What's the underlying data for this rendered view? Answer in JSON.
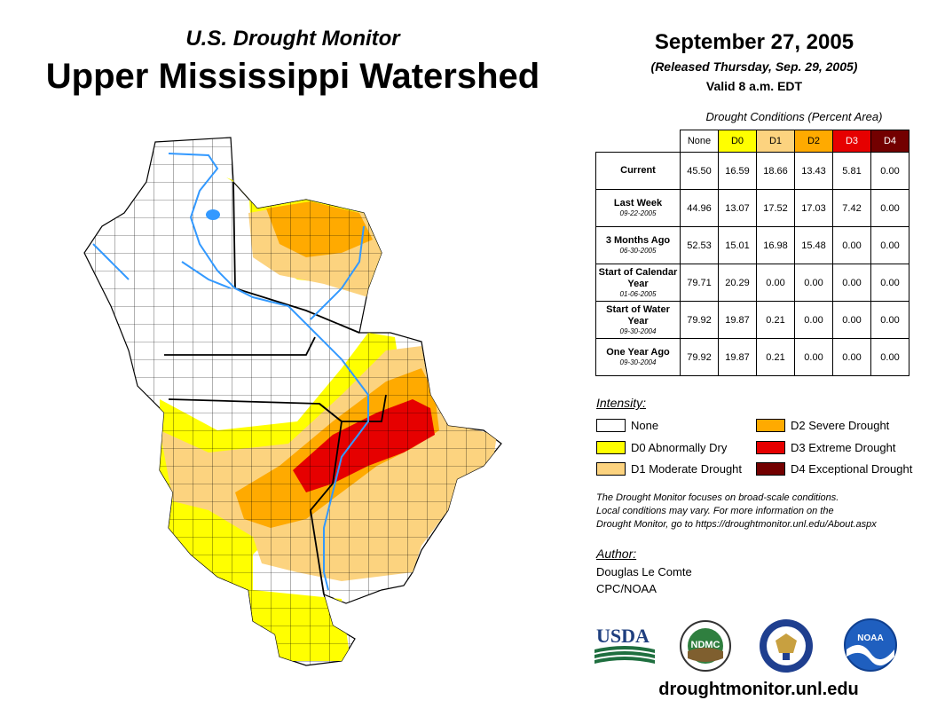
{
  "header": {
    "subtitle": "U.S. Drought Monitor",
    "title": "Upper Mississippi Watershed",
    "date": "September 27, 2005",
    "released": "(Released Thursday, Sep. 29, 2005)",
    "valid": "Valid 8 a.m. EDT"
  },
  "table": {
    "caption": "Drought Conditions (Percent Area)",
    "columns": [
      "None",
      "D0",
      "D1",
      "D2",
      "D3",
      "D4"
    ],
    "rows": [
      {
        "label": "Current",
        "sub": "",
        "values": [
          "45.50",
          "16.59",
          "18.66",
          "13.43",
          "5.81",
          "0.00"
        ]
      },
      {
        "label": "Last Week",
        "sub": "09-22-2005",
        "values": [
          "44.96",
          "13.07",
          "17.52",
          "17.03",
          "7.42",
          "0.00"
        ]
      },
      {
        "label": "3 Months Ago",
        "sub": "06-30-2005",
        "values": [
          "52.53",
          "15.01",
          "16.98",
          "15.48",
          "0.00",
          "0.00"
        ]
      },
      {
        "label": "Start of Calendar Year",
        "sub": "01-06-2005",
        "values": [
          "79.71",
          "20.29",
          "0.00",
          "0.00",
          "0.00",
          "0.00"
        ]
      },
      {
        "label": "Start of Water Year",
        "sub": "09-30-2004",
        "values": [
          "79.92",
          "19.87",
          "0.21",
          "0.00",
          "0.00",
          "0.00"
        ]
      },
      {
        "label": "One Year Ago",
        "sub": "09-30-2004",
        "values": [
          "79.92",
          "19.87",
          "0.21",
          "0.00",
          "0.00",
          "0.00"
        ]
      }
    ]
  },
  "legend": {
    "title": "Intensity:",
    "items": [
      {
        "label": "None",
        "color": "#ffffff"
      },
      {
        "label": "D0 Abnormally Dry",
        "color": "#ffff00"
      },
      {
        "label": "D1 Moderate Drought",
        "color": "#fcd37f"
      },
      {
        "label": "D2 Severe Drought",
        "color": "#ffaa00"
      },
      {
        "label": "D3 Extreme Drought",
        "color": "#e60000"
      },
      {
        "label": "D4 Exceptional Drought",
        "color": "#730000"
      }
    ]
  },
  "note": {
    "line1": "The Drought Monitor focuses on broad-scale conditions.",
    "line2": "Local conditions may vary. For more information on the",
    "line3": "Drought Monitor, go to https://droughtmonitor.unl.edu/About.aspx"
  },
  "author": {
    "title": "Author:",
    "name": "Douglas Le Comte",
    "org": "CPC/NOAA"
  },
  "logos": {
    "usda": "USDA",
    "ndmc": "NDMC",
    "noaa": "NOAA"
  },
  "website": "droughtmonitor.unl.edu",
  "colors": {
    "none": "#ffffff",
    "d0": "#ffff00",
    "d1": "#fcd37f",
    "d2": "#ffaa00",
    "d3": "#e60000",
    "d4": "#730000",
    "river": "#3399ff"
  }
}
